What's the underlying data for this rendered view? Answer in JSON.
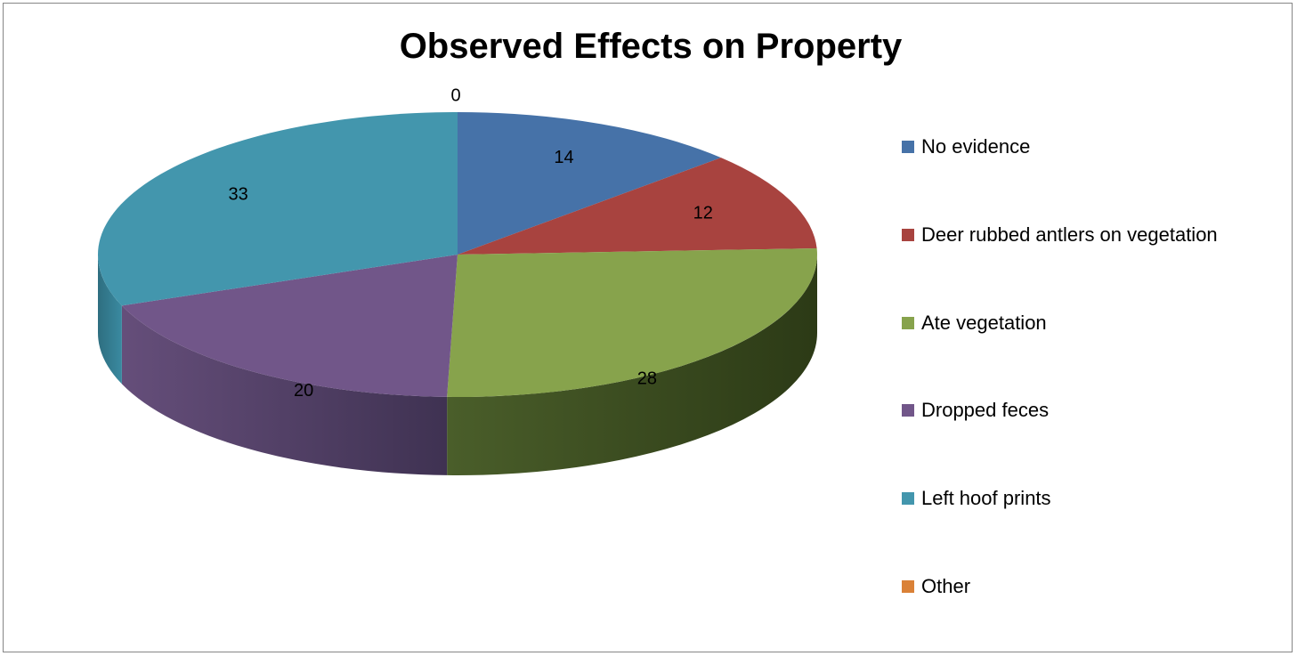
{
  "chart_data": {
    "type": "pie",
    "title": "Observed Effects on Property",
    "legend_position": "right",
    "categories": [
      "No evidence",
      "Deer rubbed antlers on vegetation",
      "Ate vegetation",
      "Dropped feces",
      "Left hoof prints",
      "Other"
    ],
    "values": [
      14,
      12,
      28,
      20,
      33,
      0
    ],
    "colors": [
      "#4672A8",
      "#A8433F",
      "#87A34C",
      "#715689",
      "#4396AD",
      "#DA8137"
    ]
  }
}
